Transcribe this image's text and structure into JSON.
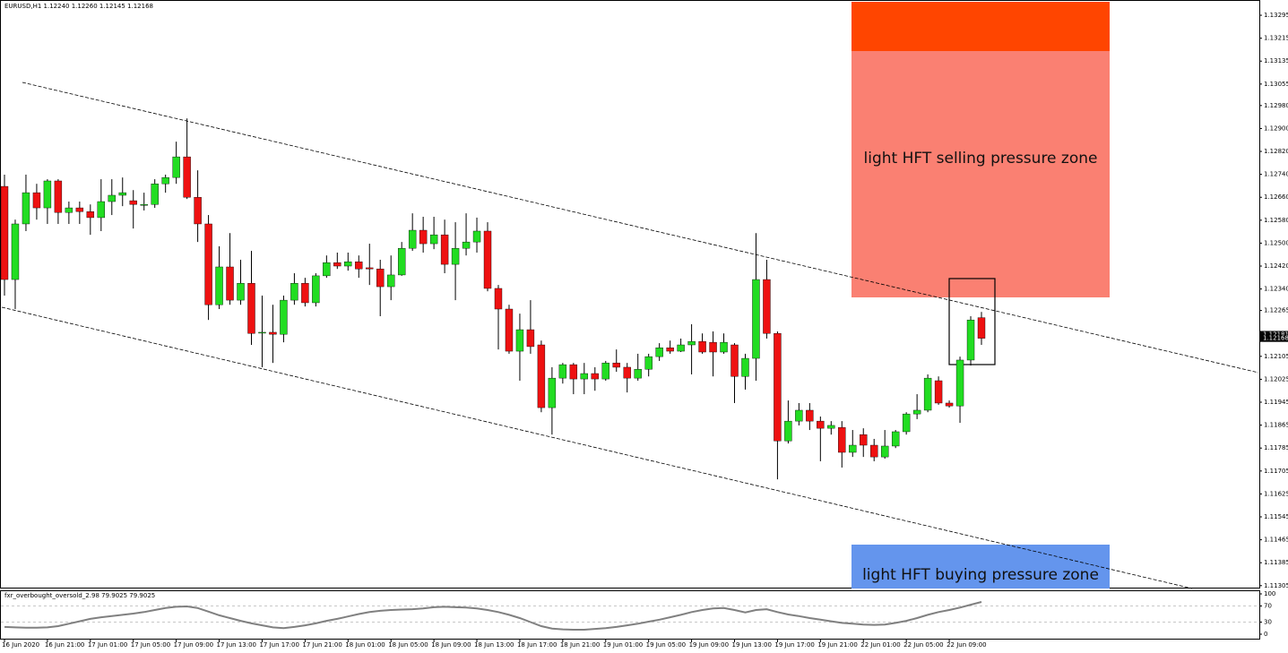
{
  "chart_data": {
    "type": "candlestick",
    "title": "EURUSD,H1  1.12240 1.12260 1.12145 1.12168",
    "up_color": "#22dd22",
    "down_color": "#ee1111",
    "categories": [
      "16 Jun 2020",
      null,
      null,
      null,
      "16 Jun 21:00",
      null,
      null,
      null,
      "17 Jun 01:00",
      null,
      null,
      null,
      "17 Jun 05:00",
      null,
      null,
      null,
      "17 Jun 09:00",
      null,
      null,
      null,
      "17 Jun 13:00",
      null,
      null,
      null,
      "17 Jun 17:00",
      null,
      null,
      null,
      "17 Jun 21:00",
      null,
      null,
      null,
      "18 Jun 01:00",
      null,
      null,
      null,
      "18 Jun 05:00",
      null,
      null,
      null,
      "18 Jun 09:00",
      null,
      null,
      null,
      "18 Jun 13:00",
      null,
      null,
      null,
      "18 Jun 17:00",
      null,
      null,
      null,
      "18 Jun 21:00",
      null,
      null,
      null,
      "19 Jun 01:00",
      null,
      null,
      null,
      "19 Jun 05:00",
      null,
      null,
      null,
      "19 Jun 09:00",
      null,
      null,
      null,
      "19 Jun 13:00",
      null,
      null,
      null,
      "19 Jun 17:00",
      null,
      null,
      null,
      "19 Jun 21:00",
      null,
      null,
      null,
      "22 Jun 01:00",
      null,
      null,
      null,
      "22 Jun 05:00",
      null,
      null,
      null,
      "22 Jun 09:00",
      null,
      null,
      null
    ],
    "open": [
      1.12698,
      1.12373,
      1.12567,
      1.12676,
      1.12623,
      1.12717,
      1.12607,
      1.12623,
      1.1261,
      1.12589,
      1.12645,
      1.12667,
      1.12648,
      1.12635,
      1.12635,
      1.12707,
      1.12729,
      1.12801,
      1.1266,
      1.12567,
      1.12285,
      1.12417,
      1.12301,
      1.1236,
      1.12189,
      1.12189,
      1.12182,
      1.12301,
      1.1236,
      1.12292,
      1.12386,
      1.12432,
      1.1242,
      1.12435,
      1.12414,
      1.1241,
      1.12348,
      1.12389,
      1.12482,
      1.12545,
      1.12498,
      1.12529,
      1.12426,
      1.12482,
      1.12504,
      1.12542,
      1.12342,
      1.1227,
      1.12123,
      1.12198,
      1.12145,
      1.11926,
      1.12029,
      1.12076,
      1.12026,
      1.12045,
      1.12026,
      1.12082,
      1.12067,
      1.12029,
      1.1206,
      1.12104,
      1.12135,
      1.12123,
      1.12145,
      1.12157,
      1.12154,
      1.1212,
      1.12145,
      1.12035,
      1.12098,
      1.12373,
      1.12185,
      1.1181,
      1.11879,
      1.11917,
      1.11879,
      1.11854,
      1.11857,
      1.1177,
      1.11832,
      1.11795,
      1.11754,
      1.11792,
      1.11842,
      1.11904,
      1.11917,
      1.1202,
      1.11942,
      1.11932,
      1.12092,
      1.1224
    ],
    "high": [
      1.12739,
      1.12582,
      1.12739,
      1.12707,
      1.12723,
      1.12723,
      1.12645,
      1.12645,
      1.12635,
      1.12723,
      1.12723,
      1.12729,
      1.12685,
      1.12676,
      1.12723,
      1.12739,
      1.12854,
      1.12935,
      1.12754,
      1.12598,
      1.12489,
      1.12535,
      1.12442,
      1.12473,
      1.12317,
      1.12285,
      1.12317,
      1.12395,
      1.12379,
      1.12395,
      1.12457,
      1.12467,
      1.12467,
      1.12457,
      1.12498,
      1.12442,
      1.12457,
      1.12504,
      1.12604,
      1.12592,
      1.12592,
      1.12582,
      1.12573,
      1.12604,
      1.12589,
      1.12573,
      1.12354,
      1.12285,
      1.12254,
      1.12301,
      1.1216,
      1.12067,
      1.12082,
      1.12082,
      1.12082,
      1.12067,
      1.12089,
      1.12129,
      1.12082,
      1.12114,
      1.12114,
      1.12151,
      1.1216,
      1.12167,
      1.12217,
      1.12185,
      1.12192,
      1.12185,
      1.12151,
      1.12114,
      1.12535,
      1.12442,
      1.12192,
      1.11951,
      1.11942,
      1.11942,
      1.11895,
      1.11879,
      1.11879,
      1.11848,
      1.11854,
      1.11817,
      1.11848,
      1.11848,
      1.1191,
      1.11973,
      1.12042,
      1.12035,
      1.11951,
      1.12104,
      1.12245,
      1.1226
    ],
    "low": [
      1.12317,
      1.1227,
      1.12542,
      1.12582,
      1.12567,
      1.12567,
      1.12567,
      1.12567,
      1.12529,
      1.12542,
      1.12598,
      1.12629,
      1.12551,
      1.12614,
      1.12623,
      1.12676,
      1.12707,
      1.12654,
      1.12504,
      1.12232,
      1.1227,
      1.12285,
      1.12285,
      1.12145,
      1.12067,
      1.12082,
      1.12154,
      1.12285,
      1.12279,
      1.12279,
      1.12379,
      1.1241,
      1.12404,
      1.12379,
      1.12354,
      1.12245,
      1.12301,
      1.12386,
      1.12473,
      1.12467,
      1.12479,
      1.12395,
      1.12301,
      1.12457,
      1.12467,
      1.12332,
      1.12129,
      1.12114,
      1.1202,
      1.12114,
      1.1191,
      1.11832,
      1.1201,
      1.11973,
      1.11973,
      1.11985,
      1.1202,
      1.12051,
      1.11979,
      1.1202,
      1.12035,
      1.12089,
      1.12114,
      1.1212,
      1.12042,
      1.12114,
      1.12035,
      1.12114,
      1.11942,
      1.11989,
      1.1202,
      1.12167,
      1.11676,
      1.11801,
      1.11864,
      1.11848,
      1.11739,
      1.11832,
      1.11717,
      1.11754,
      1.11754,
      1.11739,
      1.11748,
      1.11785,
      1.11832,
      1.11886,
      1.1191,
      1.11936,
      1.11926,
      1.11873,
      1.12073,
      1.12145
    ],
    "close": [
      1.12373,
      1.12567,
      1.12676,
      1.12623,
      1.12717,
      1.12607,
      1.12623,
      1.1261,
      1.12589,
      1.12645,
      1.12667,
      1.12676,
      1.12635,
      1.12635,
      1.12707,
      1.12729,
      1.12801,
      1.1266,
      1.12567,
      1.12285,
      1.12417,
      1.12301,
      1.1236,
      1.12185,
      1.12189,
      1.12182,
      1.12301,
      1.1236,
      1.12292,
      1.12386,
      1.12432,
      1.1242,
      1.12435,
      1.1241,
      1.1241,
      1.12348,
      1.12389,
      1.12482,
      1.12545,
      1.12498,
      1.12529,
      1.12426,
      1.12482,
      1.12504,
      1.12542,
      1.12342,
      1.1227,
      1.12123,
      1.12198,
      1.12139,
      1.11926,
      1.12029,
      1.12076,
      1.12026,
      1.12045,
      1.12026,
      1.12082,
      1.12067,
      1.12029,
      1.1206,
      1.12104,
      1.12135,
      1.12123,
      1.12145,
      1.12157,
      1.1212,
      1.1212,
      1.12154,
      1.12035,
      1.12098,
      1.12373,
      1.12185,
      1.1181,
      1.11879,
      1.11917,
      1.11879,
      1.11854,
      1.11864,
      1.1177,
      1.11795,
      1.11795,
      1.11754,
      1.11792,
      1.11842,
      1.11904,
      1.11917,
      1.12029,
      1.11942,
      1.11932,
      1.12092,
      1.12232,
      1.12168
    ],
    "ylim": [
      1.11295,
      1.13342
    ],
    "yticks": [
      1.13295,
      1.13215,
      1.13135,
      1.13055,
      {
        "value": 1.1298,
        "label": "1.12980"
      },
      {
        "value": 1.129,
        "label": "1.12900"
      },
      {
        "value": 1.1282,
        "label": "1.12820"
      },
      {
        "value": 1.1274,
        "label": "1.12740"
      },
      {
        "value": 1.1266,
        "label": "1.12660"
      },
      {
        "value": 1.1258,
        "label": "1.12580"
      },
      {
        "value": 1.125,
        "label": "1.12500"
      },
      {
        "value": 1.1242,
        "label": "1.12420"
      },
      {
        "value": 1.1234,
        "label": "1.12340"
      },
      1.12265,
      1.12105,
      1.12025,
      1.11945,
      1.11865,
      1.11785,
      1.11705,
      1.11625,
      1.11545,
      1.11465,
      1.11385,
      1.11305
    ],
    "price_labels": [
      1.12181,
      1.12168
    ],
    "annotations": [
      "light HFT selling pressure zone",
      "light HFT buying pressure zone"
    ],
    "indicator": {
      "name": "fxr_overbought_oversold_2.98 79.9025 79.9025",
      "color": "#808080",
      "ylim": [
        0,
        100
      ],
      "yticks": [
        0,
        30,
        70,
        100
      ],
      "levels": [
        30,
        70
      ],
      "values": [
        18,
        17,
        16,
        16,
        17,
        20,
        26,
        32,
        38,
        42,
        45,
        48,
        51,
        55,
        60,
        65,
        68,
        69,
        65,
        56,
        47,
        40,
        33,
        27,
        22,
        17,
        15,
        18,
        22,
        27,
        33,
        38,
        44,
        50,
        55,
        58,
        60,
        61,
        62,
        64,
        67,
        68,
        67,
        66,
        64,
        60,
        55,
        48,
        40,
        30,
        20,
        14,
        12,
        11,
        11,
        13,
        15,
        18,
        22,
        26,
        31,
        36,
        42,
        48,
        55,
        60,
        64,
        65,
        60,
        54,
        60,
        62,
        55,
        49,
        45,
        40,
        36,
        32,
        28,
        26,
        24,
        23,
        24,
        28,
        33,
        40,
        48,
        55,
        60,
        66,
        73,
        79.9025
      ]
    }
  }
}
